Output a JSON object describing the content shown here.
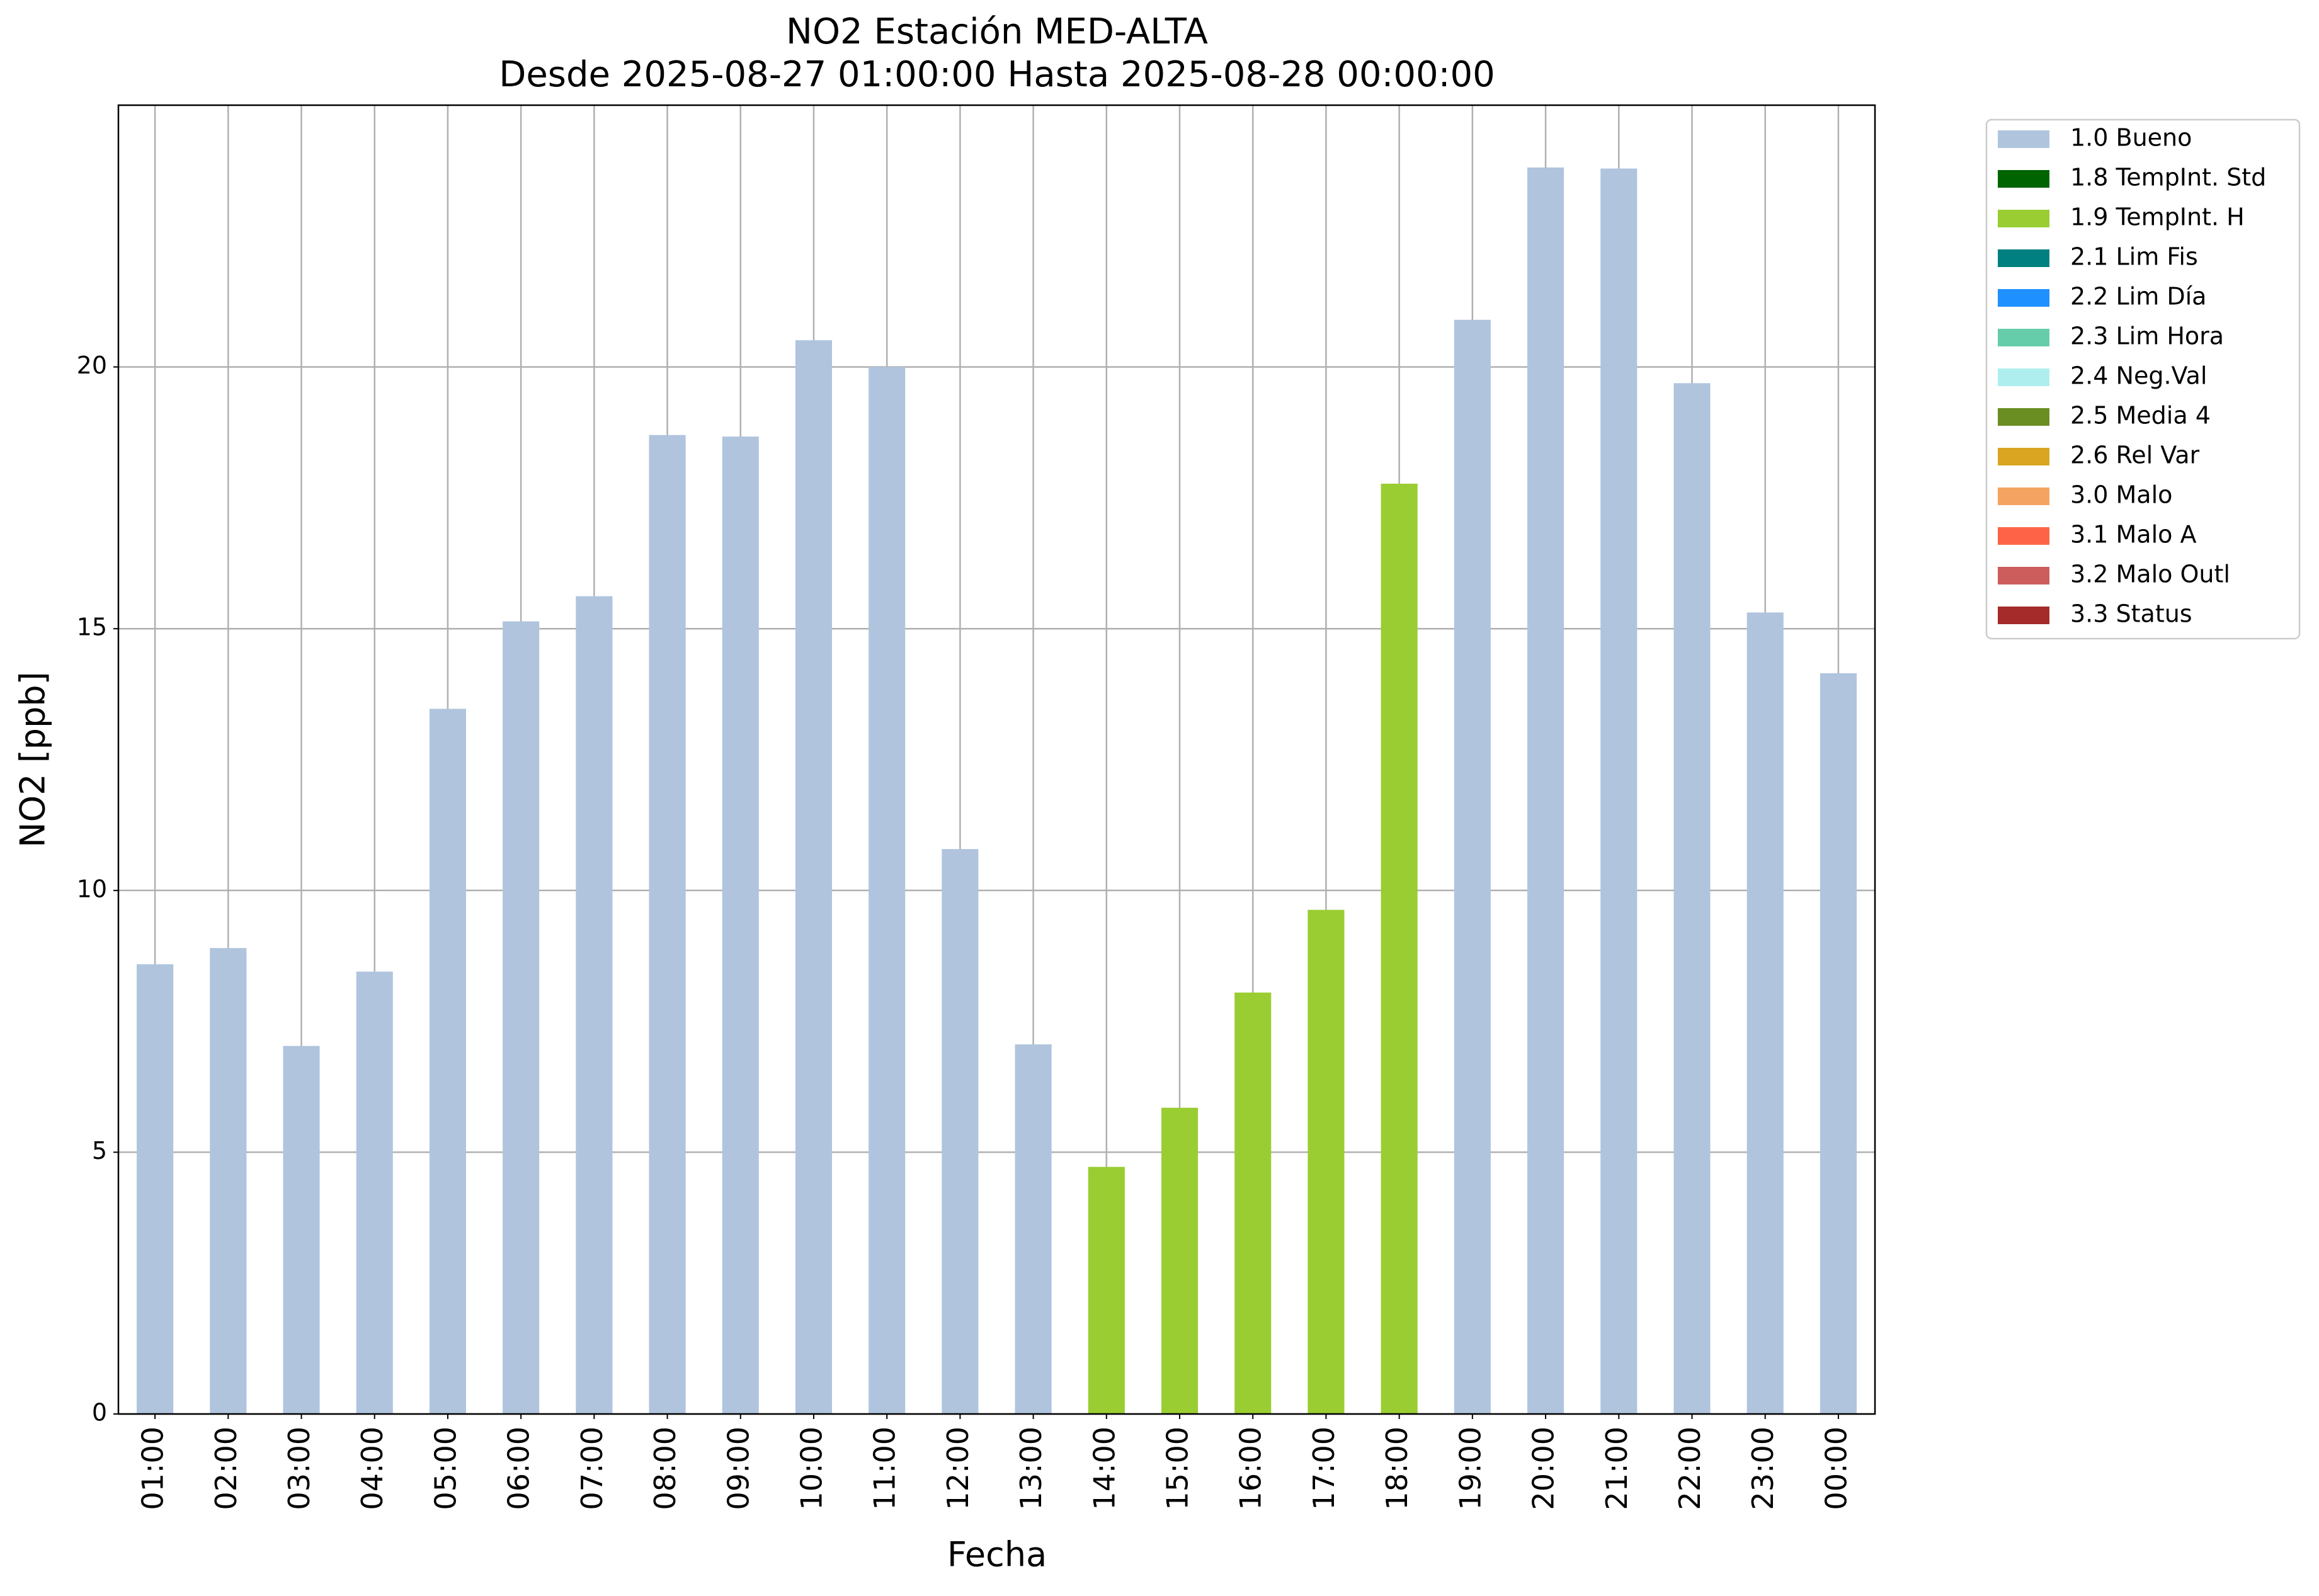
{
  "chart_data": {
    "type": "bar",
    "stacked": true,
    "title": "NO2 Estación MED-ALTA",
    "subtitle": "Desde 2025-08-27 01:00:00 Hasta 2025-08-28 00:00:00",
    "x_label": "Fecha",
    "y_label": "NO2 [ppb]",
    "categories": [
      "01:00",
      "02:00",
      "03:00",
      "04:00",
      "05:00",
      "06:00",
      "07:00",
      "08:00",
      "09:00",
      "10:00",
      "11:00",
      "12:00",
      "13:00",
      "14:00",
      "15:00",
      "16:00",
      "17:00",
      "18:00",
      "19:00",
      "20:00",
      "21:00",
      "22:00",
      "23:00",
      "00:00"
    ],
    "series": [
      {
        "name": "1.0 Bueno",
        "color": "#b0c4de",
        "values": [
          8.59,
          8.9,
          7.03,
          8.45,
          13.47,
          15.14,
          15.62,
          18.7,
          18.67,
          20.51,
          20.0,
          10.79,
          7.06,
          null,
          null,
          null,
          null,
          null,
          20.9,
          23.81,
          23.79,
          19.69,
          15.31,
          14.15
        ]
      },
      {
        "name": "1.8 TempInt. Std",
        "color": "#006400",
        "values": [
          null,
          null,
          null,
          null,
          null,
          null,
          null,
          null,
          null,
          null,
          null,
          null,
          null,
          null,
          null,
          null,
          null,
          null,
          null,
          null,
          null,
          null,
          null,
          null
        ]
      },
      {
        "name": "1.9 TempInt. H",
        "color": "#9acd32",
        "values": [
          null,
          null,
          null,
          null,
          null,
          null,
          null,
          null,
          null,
          null,
          null,
          null,
          null,
          4.72,
          5.85,
          8.05,
          9.63,
          17.77,
          null,
          null,
          null,
          null,
          null,
          null
        ]
      },
      {
        "name": "2.1 Lim Fis",
        "color": "#008080",
        "values": [
          null,
          null,
          null,
          null,
          null,
          null,
          null,
          null,
          null,
          null,
          null,
          null,
          null,
          null,
          null,
          null,
          null,
          null,
          null,
          null,
          null,
          null,
          null,
          null
        ]
      },
      {
        "name": "2.2 Lim Día",
        "color": "#1e90ff",
        "values": [
          null,
          null,
          null,
          null,
          null,
          null,
          null,
          null,
          null,
          null,
          null,
          null,
          null,
          null,
          null,
          null,
          null,
          null,
          null,
          null,
          null,
          null,
          null,
          null
        ]
      },
      {
        "name": "2.3 Lim Hora",
        "color": "#66cdaa",
        "values": [
          null,
          null,
          null,
          null,
          null,
          null,
          null,
          null,
          null,
          null,
          null,
          null,
          null,
          null,
          null,
          null,
          null,
          null,
          null,
          null,
          null,
          null,
          null,
          null
        ]
      },
      {
        "name": "2.4 Neg.Val",
        "color": "#afeeee",
        "values": [
          null,
          null,
          null,
          null,
          null,
          null,
          null,
          null,
          null,
          null,
          null,
          null,
          null,
          null,
          null,
          null,
          null,
          null,
          null,
          null,
          null,
          null,
          null,
          null
        ]
      },
      {
        "name": "2.5 Media 4",
        "color": "#6b8e23",
        "values": [
          null,
          null,
          null,
          null,
          null,
          null,
          null,
          null,
          null,
          null,
          null,
          null,
          null,
          null,
          null,
          null,
          null,
          null,
          null,
          null,
          null,
          null,
          null,
          null
        ]
      },
      {
        "name": "2.6 Rel Var",
        "color": "#daa520",
        "values": [
          null,
          null,
          null,
          null,
          null,
          null,
          null,
          null,
          null,
          null,
          null,
          null,
          null,
          null,
          null,
          null,
          null,
          null,
          null,
          null,
          null,
          null,
          null,
          null
        ]
      },
      {
        "name": "3.0 Malo",
        "color": "#f4a460",
        "values": [
          null,
          null,
          null,
          null,
          null,
          null,
          null,
          null,
          null,
          null,
          null,
          null,
          null,
          null,
          null,
          null,
          null,
          null,
          null,
          null,
          null,
          null,
          null,
          null
        ]
      },
      {
        "name": "3.1 Malo A",
        "color": "#ff6347",
        "values": [
          null,
          null,
          null,
          null,
          null,
          null,
          null,
          null,
          null,
          null,
          null,
          null,
          null,
          null,
          null,
          null,
          null,
          null,
          null,
          null,
          null,
          null,
          null,
          null
        ]
      },
      {
        "name": "3.2 Malo Outl",
        "color": "#cd5c5c",
        "values": [
          null,
          null,
          null,
          null,
          null,
          null,
          null,
          null,
          null,
          null,
          null,
          null,
          null,
          null,
          null,
          null,
          null,
          null,
          null,
          null,
          null,
          null,
          null,
          null
        ]
      },
      {
        "name": "3.3 Status",
        "color": "#a52a2a",
        "values": [
          null,
          null,
          null,
          null,
          null,
          null,
          null,
          null,
          null,
          null,
          null,
          null,
          null,
          null,
          null,
          null,
          null,
          null,
          null,
          null,
          null,
          null,
          null,
          null
        ]
      }
    ],
    "ylim": [
      0,
      25
    ],
    "yticks": [
      0,
      5,
      10,
      15,
      20
    ],
    "grid": true,
    "legend": "outside right"
  }
}
